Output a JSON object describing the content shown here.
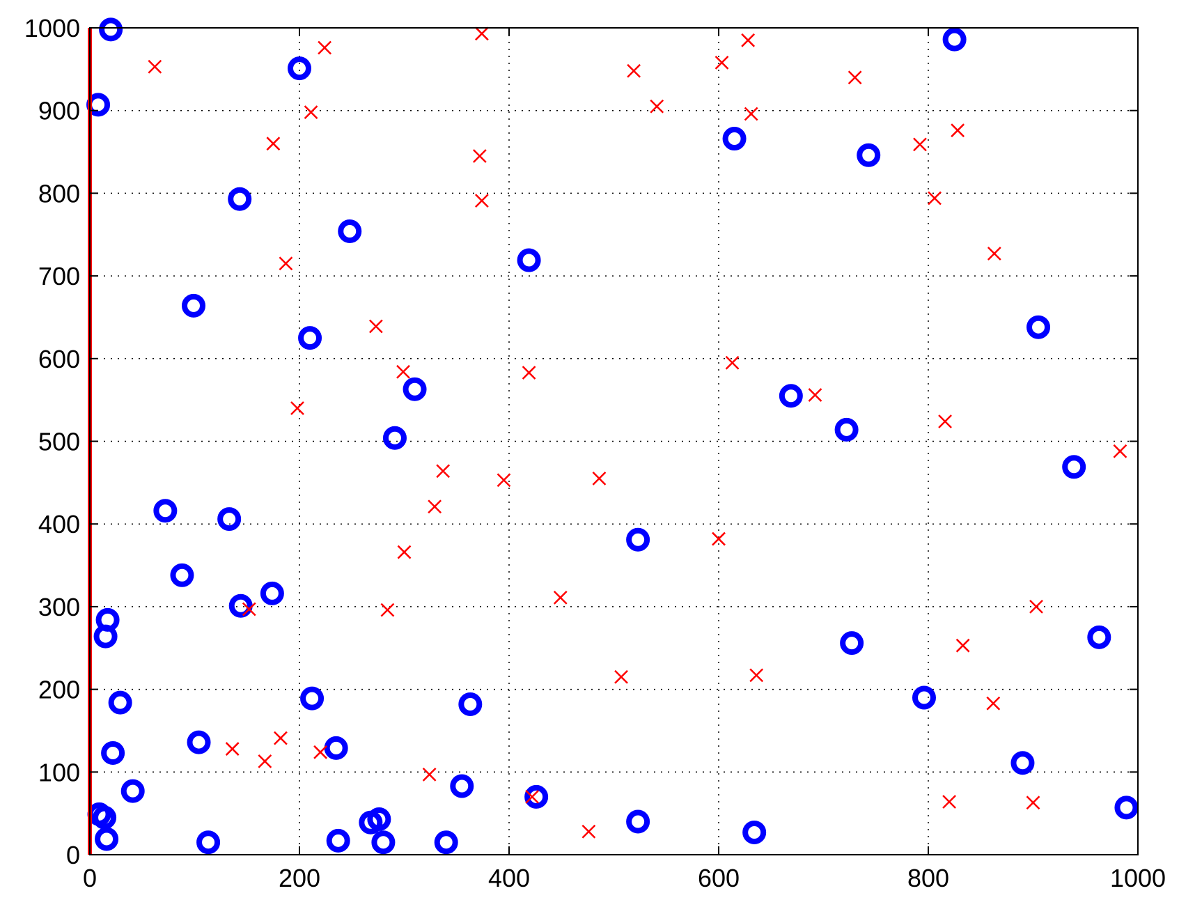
{
  "chart_data": {
    "type": "scatter",
    "title": "",
    "xlabel": "",
    "ylabel": "",
    "xlim": [
      0,
      1000
    ],
    "ylim": [
      0,
      1000
    ],
    "grid": true,
    "x_ticks": [
      "0",
      "200",
      "400",
      "600",
      "800",
      "1000"
    ],
    "y_ticks": [
      "0",
      "100",
      "200",
      "300",
      "400",
      "500",
      "600",
      "700",
      "800",
      "900",
      "1000"
    ],
    "series": [
      {
        "marker": "circle",
        "color": "#0000ff",
        "points": [
          [
            20,
            998
          ],
          [
            8,
            907
          ],
          [
            200,
            951
          ],
          [
            825,
            986
          ],
          [
            143,
            793
          ],
          [
            615,
            866
          ],
          [
            743,
            846
          ],
          [
            248,
            754
          ],
          [
            419,
            719
          ],
          [
            99,
            664
          ],
          [
            210,
            625
          ],
          [
            905,
            638
          ],
          [
            310,
            563
          ],
          [
            669,
            555
          ],
          [
            722,
            514
          ],
          [
            291,
            504
          ],
          [
            939,
            469
          ],
          [
            72,
            416
          ],
          [
            133,
            406
          ],
          [
            523,
            381
          ],
          [
            88,
            338
          ],
          [
            174,
            316
          ],
          [
            144,
            301
          ],
          [
            17,
            284
          ],
          [
            15,
            264
          ],
          [
            727,
            256
          ],
          [
            963,
            263
          ],
          [
            29,
            184
          ],
          [
            212,
            189
          ],
          [
            363,
            182
          ],
          [
            796,
            190
          ],
          [
            22,
            123
          ],
          [
            104,
            136
          ],
          [
            235,
            129
          ],
          [
            890,
            111
          ],
          [
            41,
            77
          ],
          [
            355,
            83
          ],
          [
            426,
            70
          ],
          [
            9,
            49
          ],
          [
            14,
            45
          ],
          [
            16,
            19
          ],
          [
            113,
            15
          ],
          [
            237,
            17
          ],
          [
            268,
            39
          ],
          [
            276,
            43
          ],
          [
            280,
            15
          ],
          [
            340,
            15
          ],
          [
            523,
            40
          ],
          [
            634,
            27
          ],
          [
            989,
            57
          ]
        ]
      },
      {
        "marker": "x",
        "color": "#ff0000",
        "points": [
          [
            62,
            953
          ],
          [
            224,
            976
          ],
          [
            374,
            993
          ],
          [
            628,
            985
          ],
          [
            603,
            958
          ],
          [
            519,
            948
          ],
          [
            730,
            940
          ],
          [
            211,
            898
          ],
          [
            541,
            905
          ],
          [
            631,
            896
          ],
          [
            828,
            876
          ],
          [
            175,
            860
          ],
          [
            372,
            845
          ],
          [
            792,
            859
          ],
          [
            374,
            791
          ],
          [
            806,
            794
          ],
          [
            863,
            727
          ],
          [
            187,
            715
          ],
          [
            273,
            639
          ],
          [
            299,
            584
          ],
          [
            419,
            583
          ],
          [
            613,
            595
          ],
          [
            198,
            540
          ],
          [
            816,
            524
          ],
          [
            692,
            556
          ],
          [
            983,
            488
          ],
          [
            337,
            464
          ],
          [
            395,
            453
          ],
          [
            486,
            455
          ],
          [
            329,
            421
          ],
          [
            600,
            382
          ],
          [
            300,
            366
          ],
          [
            449,
            311
          ],
          [
            284,
            296
          ],
          [
            152,
            297
          ],
          [
            903,
            300
          ],
          [
            833,
            253
          ],
          [
            507,
            215
          ],
          [
            636,
            217
          ],
          [
            862,
            183
          ],
          [
            136,
            128
          ],
          [
            182,
            141
          ],
          [
            167,
            113
          ],
          [
            220,
            124
          ],
          [
            324,
            97
          ],
          [
            422,
            70
          ],
          [
            820,
            64
          ],
          [
            900,
            63
          ],
          [
            476,
            28
          ]
        ]
      },
      {
        "marker": "line",
        "color": "#ff0000",
        "points": [
          [
            0,
            0
          ],
          [
            0,
            1000
          ]
        ]
      }
    ]
  }
}
